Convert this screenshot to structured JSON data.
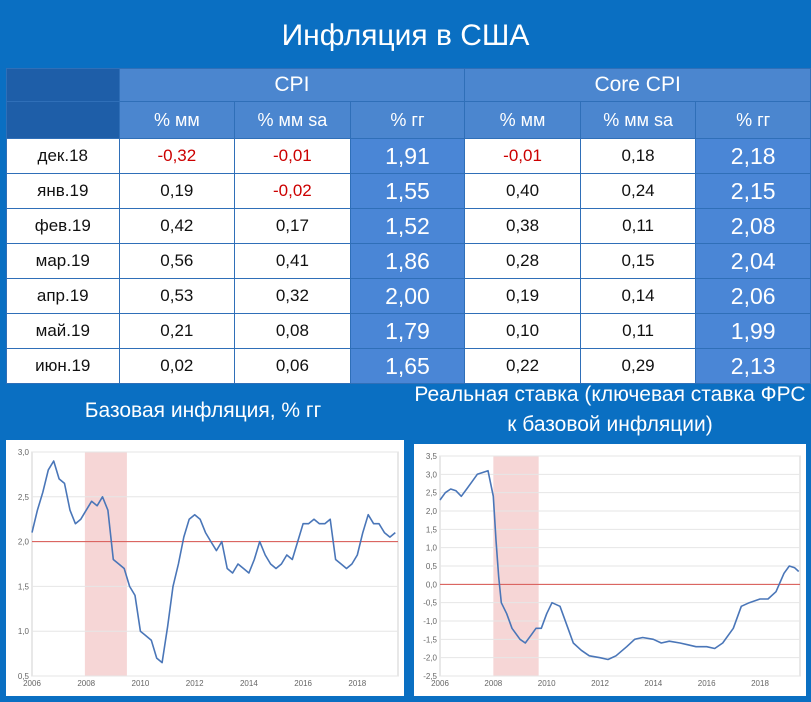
{
  "title": "Инфляция в США",
  "table": {
    "groups": [
      "CPI",
      "Core CPI"
    ],
    "subheaders": [
      "% мм",
      "% мм sa",
      "% гг",
      "% мм",
      "% мм sa",
      "% гг"
    ],
    "rows": [
      {
        "date": "дек.18",
        "cpi_mm": "-0,32",
        "cpi_mm_sa": "-0,01",
        "cpi_yy": "1,91",
        "core_mm": "-0,01",
        "core_mm_sa": "0,18",
        "core_yy": "2,18"
      },
      {
        "date": "янв.19",
        "cpi_mm": "0,19",
        "cpi_mm_sa": "-0,02",
        "cpi_yy": "1,55",
        "core_mm": "0,40",
        "core_mm_sa": "0,24",
        "core_yy": "2,15"
      },
      {
        "date": "фев.19",
        "cpi_mm": "0,42",
        "cpi_mm_sa": "0,17",
        "cpi_yy": "1,52",
        "core_mm": "0,38",
        "core_mm_sa": "0,11",
        "core_yy": "2,08"
      },
      {
        "date": "мар.19",
        "cpi_mm": "0,56",
        "cpi_mm_sa": "0,41",
        "cpi_yy": "1,86",
        "core_mm": "0,28",
        "core_mm_sa": "0,15",
        "core_yy": "2,04"
      },
      {
        "date": "апр.19",
        "cpi_mm": "0,53",
        "cpi_mm_sa": "0,32",
        "cpi_yy": "2,00",
        "core_mm": "0,19",
        "core_mm_sa": "0,14",
        "core_yy": "2,06"
      },
      {
        "date": "май.19",
        "cpi_mm": "0,21",
        "cpi_mm_sa": "0,08",
        "cpi_yy": "1,79",
        "core_mm": "0,10",
        "core_mm_sa": "0,11",
        "core_yy": "1,99"
      },
      {
        "date": "июн.19",
        "cpi_mm": "0,02",
        "cpi_mm_sa": "0,06",
        "cpi_yy": "1,65",
        "core_mm": "0,22",
        "core_mm_sa": "0,29",
        "core_yy": "2,13"
      }
    ]
  },
  "colors": {
    "background": "#0a6fc2",
    "header": "#4b86cf",
    "yy_cell": "#4a86d6",
    "negative": "#cc0000",
    "line": "#4a76b8",
    "reference_line": "#d9534f",
    "recession_band": "#f6d6d6"
  },
  "chart_data": [
    {
      "type": "line",
      "title": "Базовая инфляция, % гг",
      "xlabel": "",
      "ylabel": "",
      "xlim": [
        2006,
        2019.5
      ],
      "ylim": [
        0.5,
        3.0
      ],
      "x_ticks": [
        "2006",
        "2008",
        "2010",
        "2012",
        "2014",
        "2016",
        "2018"
      ],
      "y_ticks": [
        "0,5",
        "1,0",
        "1,5",
        "2,0",
        "2,5",
        "3,0"
      ],
      "reference_line": 2.0,
      "shaded_range": [
        2007.95,
        2009.5
      ],
      "grid": true,
      "series": [
        {
          "x": [
            2006.0,
            2006.2,
            2006.4,
            2006.6,
            2006.8,
            2007.0,
            2007.2,
            2007.4,
            2007.6,
            2007.8,
            2008.0,
            2008.2,
            2008.4,
            2008.6,
            2008.8,
            2009.0,
            2009.2,
            2009.4,
            2009.6,
            2009.8,
            2010.0,
            2010.2,
            2010.4,
            2010.6,
            2010.8,
            2011.0,
            2011.2,
            2011.4,
            2011.6,
            2011.8,
            2012.0,
            2012.2,
            2012.4,
            2012.6,
            2012.8,
            2013.0,
            2013.2,
            2013.4,
            2013.6,
            2013.8,
            2014.0,
            2014.2,
            2014.4,
            2014.6,
            2014.8,
            2015.0,
            2015.2,
            2015.4,
            2015.6,
            2015.8,
            2016.0,
            2016.2,
            2016.4,
            2016.6,
            2016.8,
            2017.0,
            2017.2,
            2017.4,
            2017.6,
            2017.8,
            2018.0,
            2018.2,
            2018.4,
            2018.6,
            2018.8,
            2019.0,
            2019.2,
            2019.4
          ],
          "values": [
            2.1,
            2.35,
            2.55,
            2.8,
            2.9,
            2.7,
            2.65,
            2.35,
            2.2,
            2.25,
            2.35,
            2.45,
            2.4,
            2.5,
            2.35,
            1.8,
            1.75,
            1.7,
            1.5,
            1.4,
            1.0,
            0.95,
            0.9,
            0.7,
            0.65,
            1.05,
            1.5,
            1.75,
            2.05,
            2.25,
            2.3,
            2.25,
            2.1,
            2.0,
            1.9,
            2.0,
            1.7,
            1.65,
            1.75,
            1.7,
            1.65,
            1.8,
            2.0,
            1.85,
            1.75,
            1.7,
            1.75,
            1.85,
            1.8,
            2.0,
            2.2,
            2.2,
            2.25,
            2.2,
            2.2,
            2.25,
            1.8,
            1.75,
            1.7,
            1.75,
            1.85,
            2.1,
            2.3,
            2.2,
            2.2,
            2.1,
            2.05,
            2.1
          ]
        }
      ]
    },
    {
      "type": "line",
      "title": "Реальная ставка (ключевая ставка ФРС к базовой инфляции)",
      "xlabel": "",
      "ylabel": "",
      "xlim": [
        2006,
        2019.5
      ],
      "ylim": [
        -2.5,
        3.5
      ],
      "x_ticks": [
        "2006",
        "2008",
        "2010",
        "2012",
        "2014",
        "2016",
        "2018"
      ],
      "y_ticks": [
        "3,5",
        "3,0",
        "2,5",
        "2,0",
        "1,5",
        "1,0",
        "0,5",
        "0,0",
        "-0,5",
        "-1,0",
        "-1,5",
        "-2,0",
        "-2,5"
      ],
      "reference_line": 0.0,
      "shaded_range": [
        2008.0,
        2009.7
      ],
      "grid": true,
      "series": [
        {
          "x": [
            2006.0,
            2006.2,
            2006.4,
            2006.6,
            2006.8,
            2007.0,
            2007.2,
            2007.4,
            2007.6,
            2007.8,
            2008.0,
            2008.1,
            2008.2,
            2008.3,
            2008.5,
            2008.7,
            2009.0,
            2009.2,
            2009.4,
            2009.6,
            2009.8,
            2010.0,
            2010.2,
            2010.5,
            2010.8,
            2011.0,
            2011.3,
            2011.6,
            2012.0,
            2012.3,
            2012.6,
            2013.0,
            2013.3,
            2013.6,
            2014.0,
            2014.3,
            2014.6,
            2015.0,
            2015.3,
            2015.6,
            2016.0,
            2016.3,
            2016.6,
            2017.0,
            2017.3,
            2017.6,
            2018.0,
            2018.3,
            2018.6,
            2018.9,
            2019.1,
            2019.3,
            2019.45
          ],
          "values": [
            2.3,
            2.5,
            2.6,
            2.55,
            2.4,
            2.6,
            2.8,
            3.0,
            3.05,
            3.1,
            2.4,
            1.2,
            0.2,
            -0.5,
            -0.8,
            -1.2,
            -1.5,
            -1.6,
            -1.4,
            -1.2,
            -1.2,
            -0.8,
            -0.5,
            -0.6,
            -1.2,
            -1.6,
            -1.8,
            -1.95,
            -2.0,
            -2.05,
            -1.95,
            -1.7,
            -1.5,
            -1.45,
            -1.5,
            -1.6,
            -1.55,
            -1.6,
            -1.65,
            -1.7,
            -1.7,
            -1.75,
            -1.6,
            -1.2,
            -0.6,
            -0.5,
            -0.4,
            -0.4,
            -0.2,
            0.3,
            0.5,
            0.45,
            0.35
          ]
        }
      ]
    }
  ]
}
